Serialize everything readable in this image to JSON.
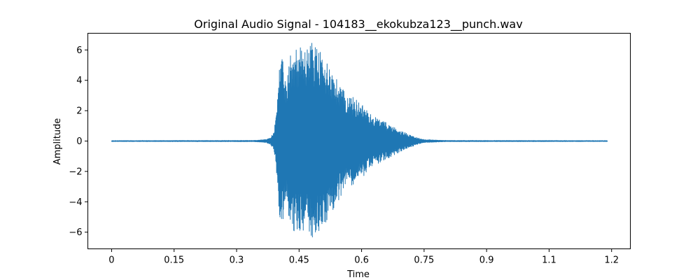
{
  "chart_data": {
    "type": "line",
    "title": "Original Audio Signal - 104183__ekokubza123__punch.wav",
    "xlabel": "Time",
    "ylabel": "Amplitude",
    "xlim": [
      -0.057,
      1.245
    ],
    "ylim": [
      -7.1,
      7.1
    ],
    "x_ticks": [
      {
        "value": 0,
        "label": "0"
      },
      {
        "value": 0.15,
        "label": "0.15"
      },
      {
        "value": 0.3,
        "label": "0.3"
      },
      {
        "value": 0.45,
        "label": "0.45"
      },
      {
        "value": 0.6,
        "label": "0.6"
      },
      {
        "value": 0.75,
        "label": "0.75"
      },
      {
        "value": 0.9,
        "label": "0.9"
      },
      {
        "value": 1.05,
        "label": "1.1"
      },
      {
        "value": 1.2,
        "label": "1.2"
      }
    ],
    "y_ticks": [
      {
        "value": -6,
        "label": "−6"
      },
      {
        "value": -4,
        "label": "−4"
      },
      {
        "value": -2,
        "label": "−2"
      },
      {
        "value": 0,
        "label": "0"
      },
      {
        "value": 2,
        "label": "2"
      },
      {
        "value": 4,
        "label": "4"
      },
      {
        "value": 6,
        "label": "6"
      }
    ],
    "grid": false,
    "series": [
      {
        "color": "#1f77b4",
        "duration": 1.19,
        "envelope": [
          [
            0.0,
            0.03
          ],
          [
            0.34,
            0.04
          ],
          [
            0.35,
            0.06
          ],
          [
            0.37,
            0.1
          ],
          [
            0.38,
            0.2
          ],
          [
            0.39,
            0.6
          ],
          [
            0.395,
            2.0
          ],
          [
            0.4,
            4.5
          ],
          [
            0.405,
            5.3
          ],
          [
            0.41,
            5.4
          ],
          [
            0.415,
            4.6
          ],
          [
            0.42,
            3.5
          ],
          [
            0.425,
            5.0
          ],
          [
            0.43,
            6.0
          ],
          [
            0.44,
            6.2
          ],
          [
            0.45,
            6.3
          ],
          [
            0.46,
            6.0
          ],
          [
            0.47,
            6.2
          ],
          [
            0.48,
            6.5
          ],
          [
            0.49,
            6.4
          ],
          [
            0.5,
            5.9
          ],
          [
            0.51,
            5.3
          ],
          [
            0.52,
            5.4
          ],
          [
            0.53,
            4.6
          ],
          [
            0.54,
            4.1
          ],
          [
            0.55,
            3.7
          ],
          [
            0.56,
            3.2
          ],
          [
            0.58,
            2.9
          ],
          [
            0.6,
            2.5
          ],
          [
            0.62,
            1.8
          ],
          [
            0.64,
            1.5
          ],
          [
            0.66,
            1.2
          ],
          [
            0.68,
            0.9
          ],
          [
            0.7,
            0.6
          ],
          [
            0.72,
            0.4
          ],
          [
            0.73,
            0.25
          ],
          [
            0.75,
            0.1
          ],
          [
            0.8,
            0.04
          ],
          [
            1.19,
            0.03
          ]
        ]
      }
    ]
  }
}
